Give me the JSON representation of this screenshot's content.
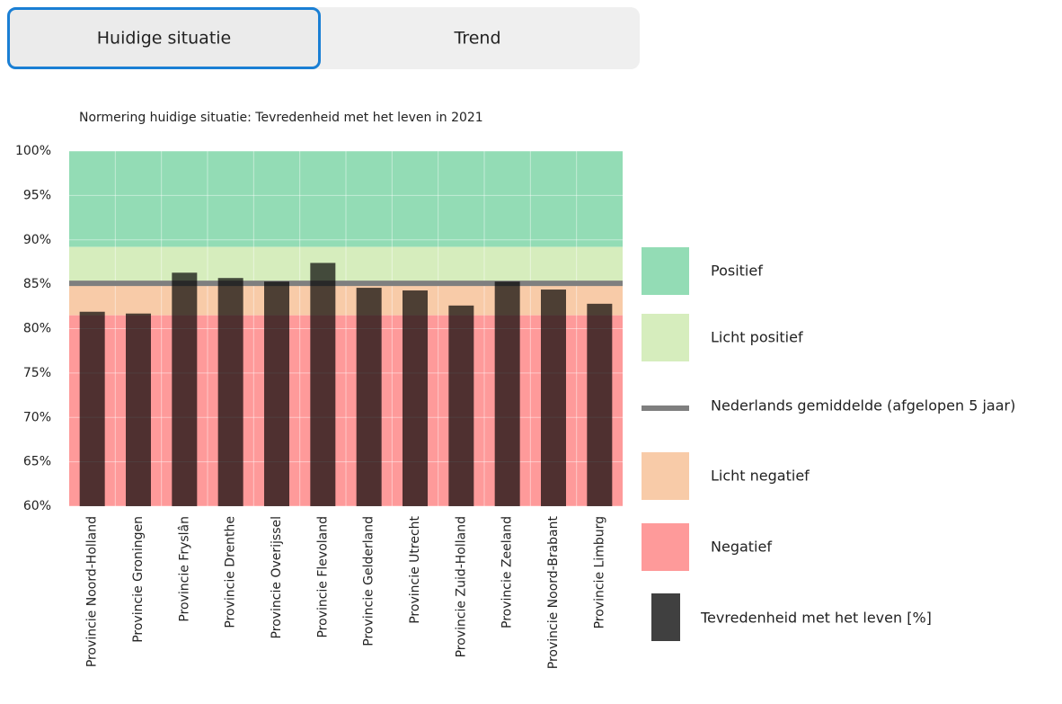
{
  "tabs": [
    "Huidige situatie",
    "Trend"
  ],
  "active_tab": 0,
  "chart_data": {
    "type": "bar",
    "title": "Normering huidige situatie: Tevredenheid met het leven in 2021",
    "categories": [
      "Provincie Noord-Holland",
      "Provincie Groningen",
      "Provincie Fryslân",
      "Provincie Drenthe",
      "Provincie Overijssel",
      "Provincie Flevoland",
      "Provincie Gelderland",
      "Provincie Utrecht",
      "Provincie Zuid-Holland",
      "Provincie Zeeland",
      "Provincie Noord-Brabant",
      "Provincie Limburg"
    ],
    "series": [
      {
        "name": "Tevredenheid met het leven [%]",
        "color": "#404040",
        "values": [
          81.9,
          81.7,
          86.3,
          85.7,
          85.3,
          87.4,
          84.6,
          84.3,
          82.6,
          85.3,
          84.4,
          82.8
        ]
      }
    ],
    "bands": [
      {
        "name": "Positief",
        "color": "#93dcb5",
        "range": [
          89.2,
          100
        ]
      },
      {
        "name": "Licht positief",
        "color": "#d6edbd",
        "range": [
          85.1,
          89.2
        ]
      },
      {
        "name": "Licht negatief",
        "color": "#f8cba8",
        "range": [
          81.5,
          85.1
        ]
      },
      {
        "name": "Negatief",
        "color": "#fe9a9a",
        "range": [
          60,
          81.5
        ]
      }
    ],
    "reference_line": {
      "name": "Nederlands gemiddelde (afgelopen 5 jaar)",
      "value": 85.1,
      "color": "#7f7f7f"
    },
    "ylim": [
      60,
      100
    ],
    "yticks": [
      {
        "value": 60,
        "label": "60%"
      },
      {
        "value": 65,
        "label": "65%"
      },
      {
        "value": 70,
        "label": "70%"
      },
      {
        "value": 75,
        "label": "75%"
      },
      {
        "value": 80,
        "label": "80%"
      },
      {
        "value": 85,
        "label": "85%"
      },
      {
        "value": 90,
        "label": "90%"
      },
      {
        "value": 95,
        "label": "95%"
      },
      {
        "value": 100,
        "label": "100%"
      }
    ],
    "grid": true
  }
}
